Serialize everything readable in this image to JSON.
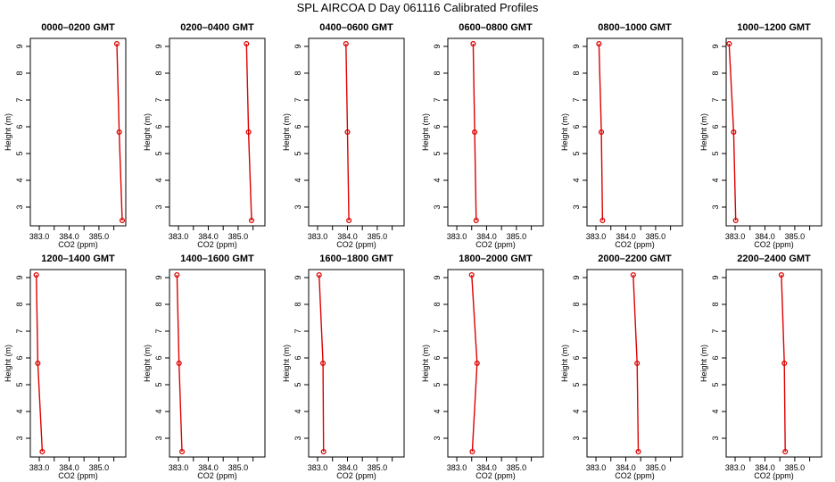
{
  "title": "SPL AIRCOA D  Day 061116  Calibrated Profiles",
  "colors": {
    "series": "#dd0000",
    "axis": "#000000"
  },
  "chart_data": {
    "type": "line",
    "title": "SPL AIRCOA D  Day 061116  Calibrated Profiles",
    "xlabel": "CO2 (ppm)",
    "ylabel": "Height (m)",
    "xlim": [
      382.7,
      385.9
    ],
    "ylim": [
      2.3,
      9.3
    ],
    "x_ticks": [
      "383.0",
      "384.0",
      "385.0"
    ],
    "x_tick_values": [
      383.0,
      384.0,
      385.0
    ],
    "x_minor_ticks": [
      383.5,
      384.5,
      385.5
    ],
    "y_ticks": [
      "3",
      "4",
      "5",
      "6",
      "7",
      "8",
      "9"
    ],
    "y_tick_values": [
      3,
      4,
      5,
      6,
      7,
      8,
      9
    ],
    "heights": [
      9.1,
      5.8,
      2.5
    ],
    "grid": false,
    "panels": [
      {
        "title": "0000–0200 GMT",
        "co2": [
          385.6,
          385.68,
          385.78
        ]
      },
      {
        "title": "0200–0400 GMT",
        "co2": [
          385.28,
          385.35,
          385.45
        ]
      },
      {
        "title": "0400–0600 GMT",
        "co2": [
          383.95,
          384.0,
          384.05
        ]
      },
      {
        "title": "0600–0800 GMT",
        "co2": [
          383.55,
          383.6,
          383.65
        ]
      },
      {
        "title": "0800–1000 GMT",
        "co2": [
          383.1,
          383.18,
          383.22
        ]
      },
      {
        "title": "1000–1200 GMT",
        "co2": [
          382.8,
          382.95,
          383.02
        ]
      },
      {
        "title": "1200–1400 GMT",
        "co2": [
          382.9,
          382.95,
          383.1
        ]
      },
      {
        "title": "1400–1600 GMT",
        "co2": [
          382.95,
          383.02,
          383.12
        ]
      },
      {
        "title": "1600–1800 GMT",
        "co2": [
          383.05,
          383.18,
          383.2
        ]
      },
      {
        "title": "1800–2000 GMT",
        "co2": [
          383.5,
          383.68,
          383.52
        ]
      },
      {
        "title": "2000–2200 GMT",
        "co2": [
          384.25,
          384.38,
          384.42
        ]
      },
      {
        "title": "2200–2400 GMT",
        "co2": [
          384.55,
          384.65,
          384.68
        ]
      }
    ]
  }
}
